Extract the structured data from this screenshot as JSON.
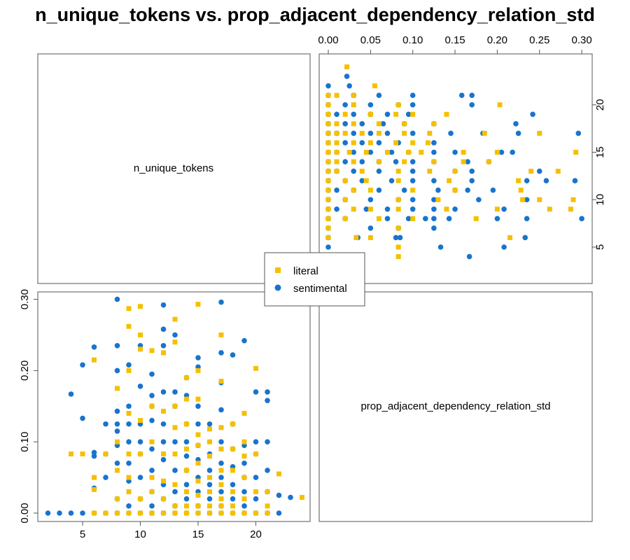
{
  "title": "n_unique_tokens vs. prop_adjacent_dependency_relation_std",
  "colors": {
    "literal": "#F5C000",
    "sentimental": "#1874CD"
  },
  "chart_data": {
    "type": "scatter",
    "variables": [
      "n_unique_tokens",
      "prop_adjacent_dependency_relation_std"
    ],
    "ranges": {
      "n_unique_tokens": [
        2,
        24
      ],
      "prop_adjacent_dependency_relation_std": [
        0,
        0.3
      ]
    },
    "ticks": {
      "n_unique_tokens": [
        "5",
        "10",
        "15",
        "20"
      ],
      "prop_adjacent_dependency_relation_std": [
        "0.00",
        "0.05",
        "0.10",
        "0.15",
        "0.20",
        "0.25",
        "0.30"
      ],
      "prop_lower_left": [
        "0.00",
        "0.10",
        "0.20",
        "0.30"
      ]
    },
    "legend": {
      "placement": "center",
      "entries": [
        "literal",
        "sentimental"
      ]
    },
    "series": [
      {
        "name": "literal",
        "marker": "square",
        "points": [
          [
            6,
            0
          ],
          [
            7,
            0
          ],
          [
            8,
            0
          ],
          [
            9,
            0
          ],
          [
            10,
            0
          ],
          [
            11,
            0
          ],
          [
            12,
            0
          ],
          [
            13,
            0
          ],
          [
            14,
            0
          ],
          [
            15,
            0
          ],
          [
            16,
            0
          ],
          [
            17,
            0
          ],
          [
            18,
            0
          ],
          [
            19,
            0
          ],
          [
            20,
            0
          ],
          [
            21,
            0
          ],
          [
            4,
            0.083
          ],
          [
            5,
            0.083
          ],
          [
            6,
            0.033
          ],
          [
            6,
            0.05
          ],
          [
            6,
            0.215
          ],
          [
            7,
            0.083
          ],
          [
            8,
            0.02
          ],
          [
            8,
            0.06
          ],
          [
            8,
            0.1
          ],
          [
            8,
            0.175
          ],
          [
            9,
            0.03
          ],
          [
            9,
            0.05
          ],
          [
            9,
            0.083
          ],
          [
            9,
            0.14
          ],
          [
            9,
            0.2
          ],
          [
            9,
            0.262
          ],
          [
            9,
            0.287
          ],
          [
            10,
            0.02
          ],
          [
            10,
            0.083
          ],
          [
            10,
            0.13
          ],
          [
            10,
            0.23
          ],
          [
            10,
            0.25
          ],
          [
            10,
            0.29
          ],
          [
            11,
            0.03
          ],
          [
            11,
            0.05
          ],
          [
            11,
            0.1
          ],
          [
            11,
            0.15
          ],
          [
            11,
            0.228
          ],
          [
            12,
            0.02
          ],
          [
            12,
            0.045
          ],
          [
            12,
            0.083
          ],
          [
            12,
            0.143
          ],
          [
            12,
            0.225
          ],
          [
            13,
            0.01
          ],
          [
            13,
            0.04
          ],
          [
            13,
            0.083
          ],
          [
            13,
            0.12
          ],
          [
            13,
            0.15
          ],
          [
            13,
            0.24
          ],
          [
            13,
            0.272
          ],
          [
            14,
            0.01
          ],
          [
            14,
            0.03
          ],
          [
            14,
            0.06
          ],
          [
            14,
            0.09
          ],
          [
            14,
            0.125
          ],
          [
            14,
            0.16
          ],
          [
            14,
            0.19
          ],
          [
            15,
            0.01
          ],
          [
            15,
            0.025
          ],
          [
            15,
            0.045
          ],
          [
            15,
            0.07
          ],
          [
            15,
            0.095
          ],
          [
            15,
            0.11
          ],
          [
            15,
            0.16
          ],
          [
            15,
            0.2
          ],
          [
            15,
            0.293
          ],
          [
            16,
            0.01
          ],
          [
            16,
            0.03
          ],
          [
            16,
            0.05
          ],
          [
            16,
            0.08
          ],
          [
            16,
            0.1
          ],
          [
            16,
            0.118
          ],
          [
            17,
            0.01
          ],
          [
            17,
            0.02
          ],
          [
            17,
            0.04
          ],
          [
            17,
            0.06
          ],
          [
            17,
            0.09
          ],
          [
            17,
            0.12
          ],
          [
            17,
            0.185
          ],
          [
            17,
            0.25
          ],
          [
            18,
            0.01
          ],
          [
            18,
            0.03
          ],
          [
            18,
            0.06
          ],
          [
            18,
            0.09
          ],
          [
            18,
            0.125
          ],
          [
            19,
            0.02
          ],
          [
            19,
            0.05
          ],
          [
            19,
            0.08
          ],
          [
            19,
            0.1
          ],
          [
            19,
            0.14
          ],
          [
            20,
            0.03
          ],
          [
            20,
            0.083
          ],
          [
            20,
            0.203
          ],
          [
            21,
            0.01
          ],
          [
            21,
            0.03
          ],
          [
            22,
            0.055
          ],
          [
            24,
            0.022
          ]
        ]
      },
      {
        "name": "sentimental",
        "marker": "circle",
        "points": [
          [
            2,
            0
          ],
          [
            3,
            0
          ],
          [
            4,
            0
          ],
          [
            5,
            0
          ],
          [
            6,
            0
          ],
          [
            7,
            0
          ],
          [
            8,
            0
          ],
          [
            9,
            0
          ],
          [
            10,
            0
          ],
          [
            11,
            0
          ],
          [
            12,
            0
          ],
          [
            13,
            0
          ],
          [
            14,
            0
          ],
          [
            15,
            0
          ],
          [
            16,
            0
          ],
          [
            17,
            0
          ],
          [
            18,
            0
          ],
          [
            19,
            0
          ],
          [
            20,
            0
          ],
          [
            21,
            0
          ],
          [
            22,
            0
          ],
          [
            4,
            0.167
          ],
          [
            5,
            0.133
          ],
          [
            5,
            0.208
          ],
          [
            6,
            0.035
          ],
          [
            6,
            0.08
          ],
          [
            6,
            0.085
          ],
          [
            6,
            0.233
          ],
          [
            7,
            0.05
          ],
          [
            7,
            0.083
          ],
          [
            7,
            0.125
          ],
          [
            8,
            0.02
          ],
          [
            8,
            0.07
          ],
          [
            8,
            0.095
          ],
          [
            8,
            0.115
          ],
          [
            8,
            0.125
          ],
          [
            8,
            0.143
          ],
          [
            8,
            0.2
          ],
          [
            8,
            0.235
          ],
          [
            8,
            0.3
          ],
          [
            9,
            0.01
          ],
          [
            9,
            0.045
          ],
          [
            9,
            0.07
          ],
          [
            9,
            0.1
          ],
          [
            9,
            0.125
          ],
          [
            9,
            0.15
          ],
          [
            9,
            0.208
          ],
          [
            10,
            0.02
          ],
          [
            10,
            0.05
          ],
          [
            10,
            0.083
          ],
          [
            10,
            0.1
          ],
          [
            10,
            0.125
          ],
          [
            10,
            0.178
          ],
          [
            10,
            0.235
          ],
          [
            11,
            0.01
          ],
          [
            11,
            0.03
          ],
          [
            11,
            0.06
          ],
          [
            11,
            0.09
          ],
          [
            11,
            0.13
          ],
          [
            11,
            0.15
          ],
          [
            11,
            0.165
          ],
          [
            11,
            0.195
          ],
          [
            12,
            0.02
          ],
          [
            12,
            0.04
          ],
          [
            12,
            0.075
          ],
          [
            12,
            0.1
          ],
          [
            12,
            0.125
          ],
          [
            12,
            0.17
          ],
          [
            12,
            0.235
          ],
          [
            12,
            0.258
          ],
          [
            12,
            0.292
          ],
          [
            13,
            0.01
          ],
          [
            13,
            0.03
          ],
          [
            13,
            0.06
          ],
          [
            13,
            0.1
          ],
          [
            13,
            0.15
          ],
          [
            13,
            0.17
          ],
          [
            13,
            0.25
          ],
          [
            14,
            0.02
          ],
          [
            14,
            0.04
          ],
          [
            14,
            0.06
          ],
          [
            14,
            0.08
          ],
          [
            14,
            0.1
          ],
          [
            14,
            0.125
          ],
          [
            14,
            0.165
          ],
          [
            14,
            0.19
          ],
          [
            15,
            0.01
          ],
          [
            15,
            0.03
          ],
          [
            15,
            0.05
          ],
          [
            15,
            0.075
          ],
          [
            15,
            0.095
          ],
          [
            15,
            0.125
          ],
          [
            15,
            0.15
          ],
          [
            15,
            0.205
          ],
          [
            15,
            0.218
          ],
          [
            16,
            0.02
          ],
          [
            16,
            0.04
          ],
          [
            16,
            0.06
          ],
          [
            16,
            0.083
          ],
          [
            16,
            0.125
          ],
          [
            17,
            0.01
          ],
          [
            17,
            0.03
          ],
          [
            17,
            0.05
          ],
          [
            17,
            0.07
          ],
          [
            17,
            0.1
          ],
          [
            17,
            0.145
          ],
          [
            17,
            0.183
          ],
          [
            17,
            0.225
          ],
          [
            17,
            0.296
          ],
          [
            18,
            0.02
          ],
          [
            18,
            0.04
          ],
          [
            18,
            0.065
          ],
          [
            18,
            0.09
          ],
          [
            18,
            0.125
          ],
          [
            18,
            0.222
          ],
          [
            19,
            0.01
          ],
          [
            19,
            0.03
          ],
          [
            19,
            0.05
          ],
          [
            19,
            0.07
          ],
          [
            19,
            0.095
          ],
          [
            19,
            0.242
          ],
          [
            20,
            0.02
          ],
          [
            20,
            0.05
          ],
          [
            20,
            0.083
          ],
          [
            20,
            0.1
          ],
          [
            20,
            0.17
          ],
          [
            21,
            0.03
          ],
          [
            21,
            0.06
          ],
          [
            21,
            0.1
          ],
          [
            21,
            0.158
          ],
          [
            21,
            0.17
          ],
          [
            22,
            0.025
          ],
          [
            23,
            0.022
          ]
        ]
      }
    ]
  }
}
